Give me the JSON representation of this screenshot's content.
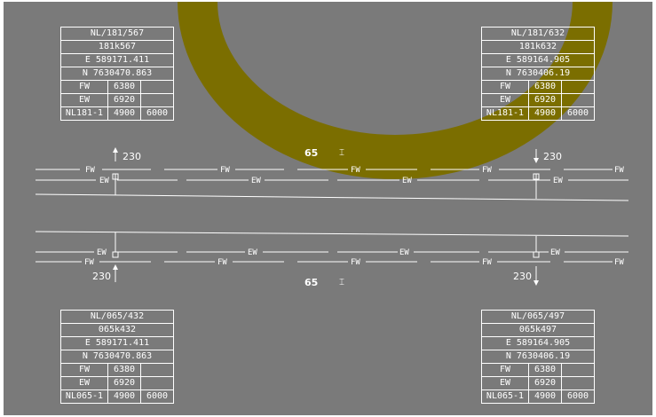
{
  "colors": {
    "background": "#7a7a7a",
    "arc": "#7b6e00",
    "line": "#ffffff"
  },
  "track_labels": {
    "fw": "FW",
    "ew": "EW"
  },
  "stations": {
    "top_left": {
      "label": "230"
    },
    "top_right": {
      "label": "230"
    },
    "bottom_left": {
      "label": "230"
    },
    "bottom_right": {
      "label": "230"
    }
  },
  "speed_signs": {
    "top": {
      "value": "65",
      "symbol": "⌶"
    },
    "bottom": {
      "value": "65",
      "symbol": "⌶"
    }
  },
  "boxes": {
    "top_left": {
      "id": "NL/181/567",
      "code": "181k567",
      "easting": "E 589171.411",
      "northing": "N 7630470.863",
      "fw_label": "FW",
      "fw_value": "6380",
      "ew_label": "EW",
      "ew_value": "6920",
      "line_label": "NL181-1",
      "line_v1": "4900",
      "line_v2": "6000"
    },
    "top_right": {
      "id": "NL/181/632",
      "code": "181k632",
      "easting": "E 589164.905",
      "northing": "N 7630406.19",
      "fw_label": "FW",
      "fw_value": "6380",
      "ew_label": "EW",
      "ew_value": "6920",
      "line_label": "NL181-1",
      "line_v1": "4900",
      "line_v2": "6000"
    },
    "bottom_left": {
      "id": "NL/065/432",
      "code": "065k432",
      "easting": "E 589171.411",
      "northing": "N 7630470.863",
      "fw_label": "FW",
      "fw_value": "6380",
      "ew_label": "EW",
      "ew_value": "6920",
      "line_label": "NL065-1",
      "line_v1": "4900",
      "line_v2": "6000"
    },
    "bottom_right": {
      "id": "NL/065/497",
      "code": "065k497",
      "easting": "E 589164.905",
      "northing": "N 7630406.19",
      "fw_label": "FW",
      "fw_value": "6380",
      "ew_label": "EW",
      "ew_value": "6920",
      "line_label": "NL065-1",
      "line_v1": "4900",
      "line_v2": "6000"
    }
  }
}
